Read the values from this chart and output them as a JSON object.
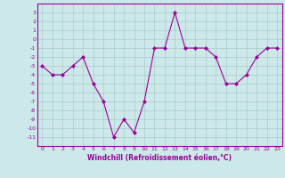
{
  "x": [
    0,
    1,
    2,
    3,
    4,
    5,
    6,
    7,
    8,
    9,
    10,
    11,
    12,
    13,
    14,
    15,
    16,
    17,
    18,
    19,
    20,
    21,
    22,
    23
  ],
  "y": [
    -3,
    -4,
    -4,
    -3,
    -2,
    -5,
    -7,
    -11,
    -9,
    -10.5,
    -7,
    -1,
    -1,
    3,
    -1,
    -1,
    -1,
    -2,
    -5,
    -5,
    -4,
    -2,
    -1,
    -1
  ],
  "line_color": "#990099",
  "marker": "D",
  "marker_size": 2,
  "bg_color": "#cce8e8",
  "grid_color": "#aacccc",
  "xlabel": "Windchill (Refroidissement éolien,°C)",
  "ylim": [
    -12,
    4
  ],
  "xlim": [
    -0.5,
    23.5
  ],
  "yticks": [
    3,
    2,
    1,
    0,
    -1,
    -2,
    -3,
    -4,
    -5,
    -6,
    -7,
    -8,
    -9,
    -10,
    -11
  ],
  "xticks": [
    0,
    1,
    2,
    3,
    4,
    5,
    6,
    7,
    8,
    9,
    10,
    11,
    12,
    13,
    14,
    15,
    16,
    17,
    18,
    19,
    20,
    21,
    22,
    23
  ],
  "tick_fontsize": 4.5,
  "xlabel_fontsize": 5.5
}
